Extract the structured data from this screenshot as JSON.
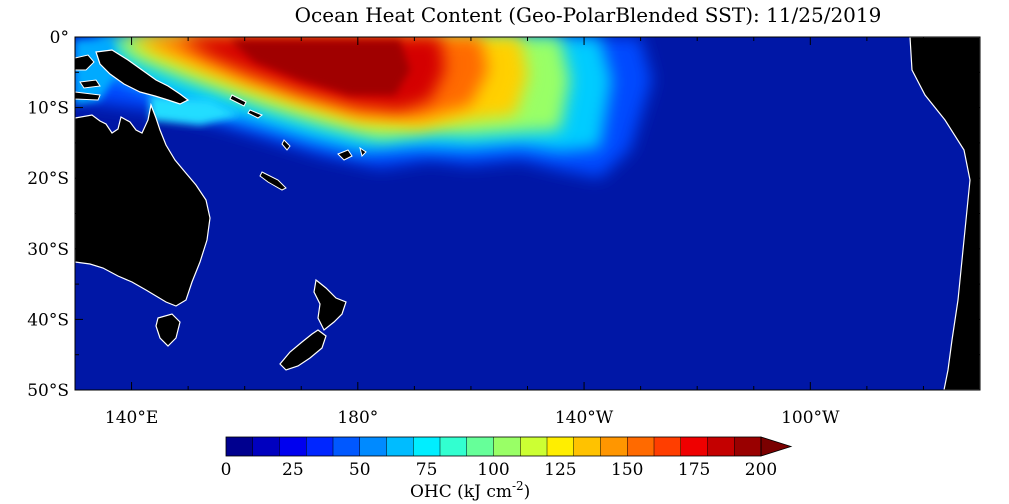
{
  "title": "Ocean Heat Content (Geo-PolarBlended SST): 11/25/2019",
  "map": {
    "lat_labels": [
      "0°",
      "10°S",
      "20°S",
      "30°S",
      "40°S",
      "50°S"
    ],
    "lat_values": [
      0,
      -10,
      -20,
      -30,
      -40,
      -50
    ],
    "lon_labels": [
      "140°E",
      "180°",
      "140°W",
      "100°W"
    ],
    "lon_values": [
      140,
      180,
      220,
      260
    ],
    "lon_range": [
      130,
      290
    ],
    "lat_range": [
      0,
      -50
    ],
    "land_color": "#000000",
    "coast_color": "#ffffff",
    "ocean_base_color": "#0017a6"
  },
  "colorbar": {
    "ticks": [
      "0",
      "25",
      "50",
      "75",
      "100",
      "125",
      "150",
      "175",
      "200"
    ],
    "min": 0,
    "max": 200,
    "step": 10,
    "extend": "max",
    "label_main": "OHC (kJ cm",
    "label_sup": "-2",
    "label_close": ")",
    "colors": [
      "#00008f",
      "#0000bf",
      "#0000ef",
      "#0026ff",
      "#0058ff",
      "#008aff",
      "#00bcff",
      "#00eeff",
      "#32ffd0",
      "#66ff99",
      "#99ff66",
      "#ccff33",
      "#ffee00",
      "#ffc200",
      "#ff9600",
      "#ff6a00",
      "#ff3e00",
      "#ef0000",
      "#c40000",
      "#990000"
    ],
    "extend_color": "#7a0000"
  }
}
